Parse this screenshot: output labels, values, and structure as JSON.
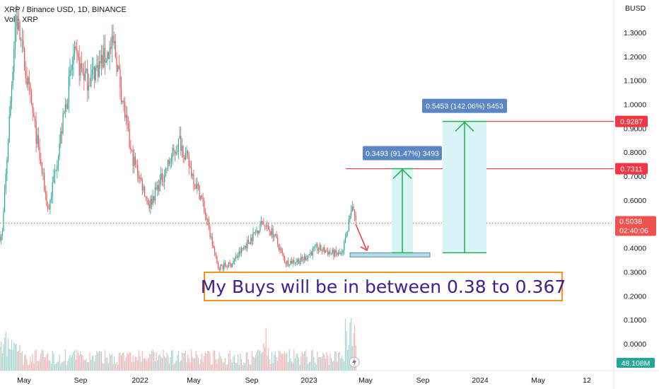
{
  "header": {
    "title": "XRP / Binance USD, 1D, BINANCE",
    "volume_label": "Vol · XRP"
  },
  "colors": {
    "up": "#26a69a",
    "down": "#ef5350",
    "level_line": "#f23645",
    "measure_arrow": "#22b04b",
    "measure_fill": "#d9f5f8",
    "measure_label_bg": "#5b86c4",
    "buy_zone": "#b2dfdb",
    "note_border": "#f7931a",
    "note_text": "#3f1f8f",
    "arrow_down": "#f23645"
  },
  "chart_data": {
    "type": "candlestick",
    "symbol": "XRP / Binance USD",
    "interval": "1D",
    "exchange": "BINANCE",
    "currency": "BUSD",
    "price_axis_ticks": [
      "1.3000",
      "1.2000",
      "1.1000",
      "1.0000",
      "0.9000",
      "0.8000",
      "0.7000",
      "0.6000",
      "0.5000",
      "0.4000",
      "0.3000",
      "0.2000",
      "0.1000",
      "0.0000"
    ],
    "time_axis_ticks": [
      "May",
      "Sep",
      "2022",
      "May",
      "Sep",
      "2023",
      "May",
      "Sep",
      "2024",
      "May",
      "12"
    ],
    "price_trajectory": [
      {
        "t": "2021-03",
        "p": 0.45
      },
      {
        "t": "2021-04-14",
        "p": 1.38
      },
      {
        "t": "2021-05-20",
        "p": 0.95
      },
      {
        "t": "2021-06-22",
        "p": 0.55
      },
      {
        "t": "2021-08",
        "p": 1.2
      },
      {
        "t": "2021-09",
        "p": 1.1
      },
      {
        "t": "2021-11-10",
        "p": 1.25
      },
      {
        "t": "2021-12",
        "p": 0.8
      },
      {
        "t": "2022-01-24",
        "p": 0.58
      },
      {
        "t": "2022-03-28",
        "p": 0.85
      },
      {
        "t": "2022-05",
        "p": 0.6
      },
      {
        "t": "2022-06-18",
        "p": 0.32
      },
      {
        "t": "2022-07",
        "p": 0.33
      },
      {
        "t": "2022-09-20",
        "p": 0.5
      },
      {
        "t": "2022-10",
        "p": 0.46
      },
      {
        "t": "2022-11-10",
        "p": 0.34
      },
      {
        "t": "2022-12",
        "p": 0.35
      },
      {
        "t": "2023-01",
        "p": 0.4
      },
      {
        "t": "2023-02",
        "p": 0.38
      },
      {
        "t": "2023-03-10",
        "p": 0.37
      },
      {
        "t": "2023-03-29",
        "p": 0.58
      },
      {
        "t": "2023-04-08",
        "p": 0.5038
      }
    ],
    "current_price": "0.5038",
    "countdown": "02:40:06",
    "volume_label": "48.108M",
    "levels": [
      {
        "price": 0.7311,
        "label": "0.7311"
      },
      {
        "price": 0.9287,
        "label": "0.9287"
      }
    ],
    "buy_zone": {
      "low": 0.367,
      "high": 0.38
    },
    "measurements": [
      {
        "from": 0.38,
        "to": 0.7311,
        "label": "0.3493 (91.47%) 3493"
      },
      {
        "from": 0.38,
        "to": 0.9287,
        "label": "0.5453 (142.06%) 5453"
      }
    ],
    "grid": false,
    "note": "My Buys will be in between 0.38 to 0.367"
  }
}
